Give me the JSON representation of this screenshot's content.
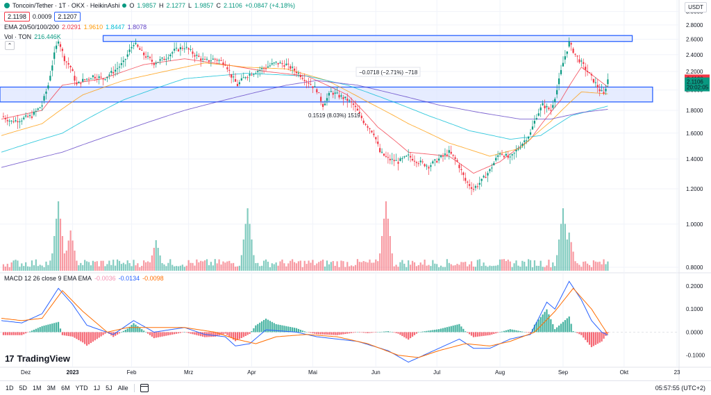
{
  "header": {
    "symbol": "Toncoin/Tether · 1T · OKX · HeikinAshi",
    "ohlc": {
      "o_label": "O",
      "o": "1.9857",
      "h_label": "H",
      "h": "2.1277",
      "l_label": "L",
      "l": "1.9857",
      "c_label": "C",
      "c": "2.1106",
      "change": "+0.0847 (+4.18%)"
    },
    "bid": "2.1198",
    "spread": "0.0009",
    "ask": "2.1207"
  },
  "ema_legend": {
    "label": "EMA 20/50/100/200",
    "v1": "2.0291",
    "v2": "1.9610",
    "v3": "1.8447",
    "v4": "1.8078"
  },
  "vol_legend": {
    "label": "Vol · TON",
    "value": "216.446K"
  },
  "macd_legend": {
    "label": "MACD 12 26 close 9 EMA EMA",
    "hist": "-0.0036",
    "macd": "-0.0134",
    "signal": "-0.0098"
  },
  "currency_button": "USDT",
  "collapse_icon": "chevron-up-icon",
  "price_tags": {
    "last": "2.1198",
    "close": "2.1106",
    "countdown": "20:02:05"
  },
  "measure_labels": {
    "upper": "−0.0718 (−2.71%) −718",
    "lower": "0.1519 (8.03%) 1519"
  },
  "timeframes": [
    "1D",
    "5D",
    "1M",
    "3M",
    "6M",
    "YTD",
    "1J",
    "5J",
    "Alle"
  ],
  "clock": "05:57:55 (UTC+2)",
  "logo_text": "TradingView",
  "colors": {
    "up": "#089981",
    "down": "#f23645",
    "ema20": "#f23645",
    "ema50": "#ff9800",
    "ema100": "#00bcd4",
    "ema200": "#5b3cc4",
    "macd": "#2962ff",
    "signal": "#ff6d00",
    "zone_fill": "#dbe4ff",
    "zone_line": "#2962ff"
  },
  "chart_data": [
    {
      "type": "line",
      "subtype": "candlestick-heikinashi",
      "title": "Toncoin/Tether · 1T · OKX · HeikinAshi",
      "y_scale": "log",
      "ylim": [
        0.78,
        3.05
      ],
      "y_ticks": [
        "3.0000",
        "2.8000",
        "2.6000",
        "2.4000",
        "2.2000",
        "2.0000",
        "1.8000",
        "1.6000",
        "1.4000",
        "1.2000",
        "1.0000",
        "0.8000"
      ],
      "x_ticks": [
        "Dez",
        "2023",
        "Feb",
        "Mrz",
        "Apr",
        "Mai",
        "Jun",
        "Jul",
        "Aug",
        "Sep",
        "Okt",
        "23"
      ],
      "x_range_days": [
        0,
        298
      ],
      "x_tick_days": [
        12,
        35,
        64,
        92,
        123,
        153,
        184,
        214,
        245,
        276,
        306,
        332
      ],
      "series": [
        {
          "name": "Price (close, approx.)",
          "style": "candles",
          "points": [
            [
              0,
              1.75
            ],
            [
              5,
              1.7
            ],
            [
              10,
              1.72
            ],
            [
              15,
              1.75
            ],
            [
              20,
              1.85
            ],
            [
              23,
              2.05
            ],
            [
              26,
              2.4
            ],
            [
              28,
              2.6
            ],
            [
              31,
              2.35
            ],
            [
              34,
              2.25
            ],
            [
              37,
              2.05
            ],
            [
              40,
              2.1
            ],
            [
              45,
              2.15
            ],
            [
              50,
              2.12
            ],
            [
              55,
              2.2
            ],
            [
              60,
              2.3
            ],
            [
              65,
              2.55
            ],
            [
              70,
              2.4
            ],
            [
              75,
              2.3
            ],
            [
              80,
              2.35
            ],
            [
              85,
              2.45
            ],
            [
              90,
              2.5
            ],
            [
              95,
              2.4
            ],
            [
              100,
              2.32
            ],
            [
              105,
              2.35
            ],
            [
              110,
              2.3
            ],
            [
              113,
              2.15
            ],
            [
              116,
              2.05
            ],
            [
              120,
              2.15
            ],
            [
              125,
              2.2
            ],
            [
              130,
              2.25
            ],
            [
              135,
              2.3
            ],
            [
              140,
              2.28
            ],
            [
              145,
              2.2
            ],
            [
              150,
              2.1
            ],
            [
              155,
              2.0
            ],
            [
              158,
              1.85
            ],
            [
              162,
              1.98
            ],
            [
              165,
              1.95
            ],
            [
              170,
              1.9
            ],
            [
              173,
              1.85
            ],
            [
              178,
              1.7
            ],
            [
              183,
              1.6
            ],
            [
              186,
              1.45
            ],
            [
              190,
              1.4
            ],
            [
              195,
              1.38
            ],
            [
              200,
              1.42
            ],
            [
              205,
              1.38
            ],
            [
              210,
              1.35
            ],
            [
              215,
              1.4
            ],
            [
              220,
              1.45
            ],
            [
              224,
              1.38
            ],
            [
              228,
              1.25
            ],
            [
              232,
              1.2
            ],
            [
              236,
              1.25
            ],
            [
              240,
              1.32
            ],
            [
              245,
              1.45
            ],
            [
              250,
              1.4
            ],
            [
              255,
              1.5
            ],
            [
              260,
              1.6
            ],
            [
              263,
              1.75
            ],
            [
              266,
              1.85
            ],
            [
              270,
              1.8
            ],
            [
              273,
              2.0
            ],
            [
              276,
              2.3
            ],
            [
              279,
              2.55
            ],
            [
              282,
              2.4
            ],
            [
              285,
              2.3
            ],
            [
              288,
              2.2
            ],
            [
              291,
              2.1
            ],
            [
              294,
              2.0
            ],
            [
              296,
              1.95
            ],
            [
              298,
              2.11
            ]
          ]
        },
        {
          "name": "EMA 20",
          "points": [
            [
              0,
              1.72
            ],
            [
              20,
              1.8
            ],
            [
              30,
              2.05
            ],
            [
              50,
              2.12
            ],
            [
              70,
              2.28
            ],
            [
              90,
              2.35
            ],
            [
              110,
              2.28
            ],
            [
              130,
              2.2
            ],
            [
              150,
              2.15
            ],
            [
              170,
              1.95
            ],
            [
              185,
              1.65
            ],
            [
              200,
              1.45
            ],
            [
              220,
              1.42
            ],
            [
              232,
              1.3
            ],
            [
              245,
              1.38
            ],
            [
              260,
              1.55
            ],
            [
              275,
              1.9
            ],
            [
              285,
              2.25
            ],
            [
              298,
              2.03
            ]
          ]
        },
        {
          "name": "EMA 50",
          "points": [
            [
              0,
              1.58
            ],
            [
              20,
              1.68
            ],
            [
              40,
              1.95
            ],
            [
              60,
              2.1
            ],
            [
              80,
              2.2
            ],
            [
              100,
              2.3
            ],
            [
              120,
              2.25
            ],
            [
              140,
              2.23
            ],
            [
              160,
              2.1
            ],
            [
              180,
              1.88
            ],
            [
              200,
              1.68
            ],
            [
              220,
              1.52
            ],
            [
              240,
              1.42
            ],
            [
              255,
              1.48
            ],
            [
              270,
              1.7
            ],
            [
              285,
              1.98
            ],
            [
              298,
              1.96
            ]
          ]
        },
        {
          "name": "EMA 100",
          "points": [
            [
              0,
              1.45
            ],
            [
              30,
              1.6
            ],
            [
              60,
              1.9
            ],
            [
              90,
              2.12
            ],
            [
              120,
              2.18
            ],
            [
              150,
              2.15
            ],
            [
              170,
              2.05
            ],
            [
              190,
              1.9
            ],
            [
              210,
              1.75
            ],
            [
              230,
              1.62
            ],
            [
              250,
              1.55
            ],
            [
              265,
              1.58
            ],
            [
              280,
              1.75
            ],
            [
              298,
              1.84
            ]
          ]
        },
        {
          "name": "EMA 200",
          "points": [
            [
              0,
              1.34
            ],
            [
              30,
              1.45
            ],
            [
              60,
              1.62
            ],
            [
              90,
              1.8
            ],
            [
              120,
              1.95
            ],
            [
              140,
              2.05
            ],
            [
              155,
              2.1
            ],
            [
              175,
              2.05
            ],
            [
              195,
              1.95
            ],
            [
              215,
              1.85
            ],
            [
              235,
              1.78
            ],
            [
              255,
              1.72
            ],
            [
              270,
              1.72
            ],
            [
              285,
              1.78
            ],
            [
              298,
              1.81
            ]
          ]
        }
      ],
      "zones": [
        {
          "from": 2.57,
          "to": 2.65,
          "label": "−0.0718 (−2.71%) −718"
        },
        {
          "from": 1.88,
          "to": 2.03,
          "label": "0.1519 (8.03%) 1519"
        }
      ]
    },
    {
      "type": "bar",
      "title": "Vol · TON",
      "series": [
        {
          "name": "Vol · TON",
          "last": "216.446K"
        }
      ],
      "peaks_days": [
        [
          28,
          1.0
        ],
        [
          34,
          0.58
        ],
        [
          76,
          0.44
        ],
        [
          121,
          0.9
        ],
        [
          189,
          1.0
        ],
        [
          276,
          0.9
        ],
        [
          279,
          0.55
        ]
      ]
    },
    {
      "type": "line",
      "title": "MACD 12 26 close 9 EMA EMA",
      "ylim": [
        -0.14,
        0.23
      ],
      "y_ticks": [
        "0.2000",
        "0.1000",
        "0.0000",
        "-0.1000"
      ],
      "series": [
        {
          "name": "MACD",
          "points": [
            [
              0,
              0.05
            ],
            [
              10,
              0.04
            ],
            [
              20,
              0.08
            ],
            [
              28,
              0.19
            ],
            [
              35,
              0.12
            ],
            [
              42,
              0.03
            ],
            [
              55,
              -0.01
            ],
            [
              65,
              0.05
            ],
            [
              75,
              0.0
            ],
            [
              90,
              0.02
            ],
            [
              100,
              -0.01
            ],
            [
              110,
              -0.02
            ],
            [
              115,
              -0.06
            ],
            [
              122,
              -0.05
            ],
            [
              130,
              0.01
            ],
            [
              145,
              0.0
            ],
            [
              155,
              -0.02
            ],
            [
              165,
              -0.03
            ],
            [
              175,
              -0.04
            ],
            [
              190,
              -0.08
            ],
            [
              200,
              -0.13
            ],
            [
              210,
              -0.09
            ],
            [
              220,
              -0.05
            ],
            [
              225,
              -0.03
            ],
            [
              232,
              -0.07
            ],
            [
              240,
              -0.07
            ],
            [
              250,
              -0.03
            ],
            [
              260,
              -0.01
            ],
            [
              268,
              0.13
            ],
            [
              272,
              0.1
            ],
            [
              279,
              0.22
            ],
            [
              285,
              0.14
            ],
            [
              290,
              0.05
            ],
            [
              295,
              0.0
            ],
            [
              298,
              -0.013
            ]
          ]
        },
        {
          "name": "Signal",
          "points": [
            [
              0,
              0.06
            ],
            [
              10,
              0.05
            ],
            [
              20,
              0.06
            ],
            [
              30,
              0.18
            ],
            [
              40,
              0.09
            ],
            [
              52,
              0.0
            ],
            [
              62,
              0.02
            ],
            [
              75,
              0.02
            ],
            [
              90,
              0.02
            ],
            [
              105,
              0.0
            ],
            [
              115,
              -0.03
            ],
            [
              125,
              -0.05
            ],
            [
              135,
              -0.02
            ],
            [
              150,
              -0.01
            ],
            [
              165,
              -0.02
            ],
            [
              180,
              -0.05
            ],
            [
              195,
              -0.1
            ],
            [
              205,
              -0.11
            ],
            [
              215,
              -0.08
            ],
            [
              228,
              -0.05
            ],
            [
              240,
              -0.06
            ],
            [
              250,
              -0.04
            ],
            [
              262,
              0.0
            ],
            [
              272,
              0.09
            ],
            [
              281,
              0.19
            ],
            [
              290,
              0.1
            ],
            [
              298,
              -0.01
            ]
          ]
        }
      ],
      "histogram_last": "-0.0036"
    }
  ]
}
